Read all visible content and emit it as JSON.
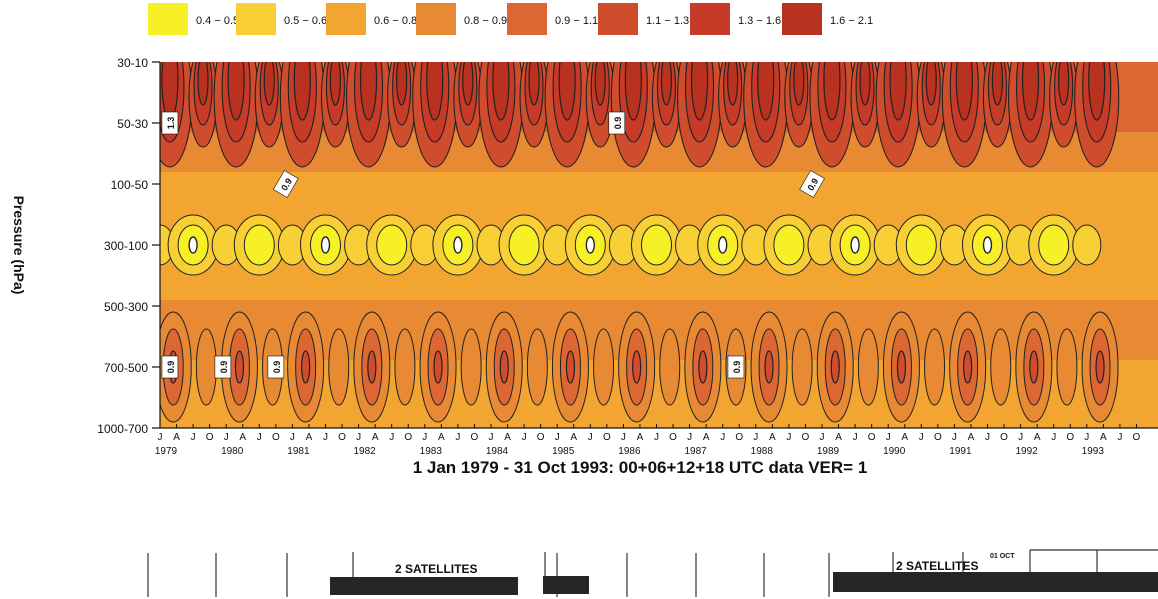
{
  "colors": {
    "lvl0": "#f7f027",
    "lvl1": "#f8d036",
    "lvl2": "#f2a631",
    "lvl3": "#e88a34",
    "lvl4": "#dc6733",
    "lvl5": "#cf4c2d",
    "lvl6": "#c73a27",
    "lvl7": "#b9311f",
    "contour": "#222222",
    "sat_bar": "#262626"
  },
  "chart_data": {
    "type": "heatmap",
    "legend": [
      {
        "label": "0.4 − 0.5",
        "color": "#f7f027"
      },
      {
        "label": "0.5 − 0.6",
        "color": "#f8d036"
      },
      {
        "label": "0.6 − 0.8",
        "color": "#f2a631"
      },
      {
        "label": "0.8 − 0.9",
        "color": "#e88a34"
      },
      {
        "label": "0.9 − 1.1",
        "color": "#dc6733"
      },
      {
        "label": "1.1 − 1.3",
        "color": "#cf4c2d"
      },
      {
        "label": "1.3 − 1.6",
        "color": "#c73a27"
      },
      {
        "label": "1.6 − 2.1",
        "color": "#b9311f"
      }
    ],
    "ylabel": "Pressure (hPa)",
    "y_categories": [
      "30-10",
      "50-30",
      "100-50",
      "300-100",
      "500-300",
      "700-500",
      "1000-700"
    ],
    "x_months": [
      "J",
      "A",
      "J",
      "O",
      "J",
      "A",
      "J",
      "O",
      "J",
      "A",
      "J",
      "O",
      "J",
      "A",
      "J",
      "O",
      "J",
      "A",
      "J",
      "O",
      "J",
      "A",
      "J",
      "O",
      "J",
      "A",
      "J",
      "O",
      "J",
      "A",
      "J",
      "O",
      "J",
      "A",
      "J",
      "O",
      "J",
      "A",
      "J",
      "O",
      "J",
      "A",
      "J",
      "O",
      "J",
      "A",
      "J",
      "O",
      "J",
      "A",
      "J",
      "O",
      "J",
      "A",
      "J",
      "O",
      "J",
      "A",
      "J",
      "O"
    ],
    "x_years": [
      "1979",
      "1980",
      "1981",
      "1982",
      "1983",
      "1984",
      "1985",
      "1986",
      "1987",
      "1988",
      "1989",
      "1990",
      "1991",
      "1992",
      "1993"
    ],
    "xlabel": "1 Jan 1979 - 31 Oct 1993: 00+06+12+18 UTC data VER= 1",
    "contour_labels": [
      {
        "text": "1.3",
        "year": 1979.15,
        "level": "50-30"
      },
      {
        "text": "0.9",
        "year": 1980.9,
        "level": "100-50"
      },
      {
        "text": "0.9",
        "year": 1985.9,
        "level": "50-30"
      },
      {
        "text": "0.9",
        "year": 1988.85,
        "level": "100-50"
      },
      {
        "text": "0.9",
        "year": 1979.15,
        "level": "700-500"
      },
      {
        "text": "0.9",
        "year": 1979.95,
        "level": "700-500"
      },
      {
        "text": "0.9",
        "year": 1980.75,
        "level": "700-500"
      },
      {
        "text": "0.9",
        "year": 1987.7,
        "level": "700-500"
      }
    ],
    "xlim": [
      1979.0,
      1993.9
    ],
    "grid": false,
    "legend_position": "top"
  },
  "satellites": {
    "label1": "2 SATELLITES",
    "label2": "2 SATELLITES",
    "oct_label": "01 OCT"
  }
}
